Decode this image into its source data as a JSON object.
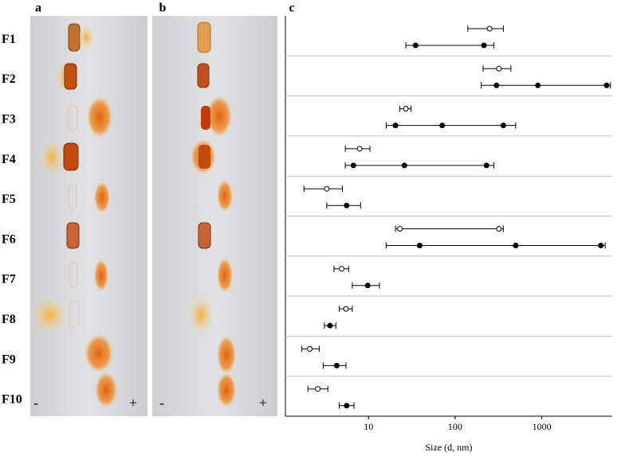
{
  "gels": [
    {
      "label": "a",
      "minus": "-",
      "plus": "+"
    },
    {
      "label": "b",
      "minus": "-",
      "plus": "+"
    }
  ],
  "chart_data": {
    "type": "scatter",
    "panel_label": "c",
    "x_label": "Size (d, nm)",
    "xscale": "log",
    "xlim": [
      1.1,
      6500
    ],
    "xticks": [
      10,
      100,
      1000
    ],
    "categories": [
      "F1",
      "F2",
      "F3",
      "F4",
      "F5",
      "F6",
      "F7",
      "F8",
      "F9",
      "F10"
    ],
    "series": [
      {
        "marker": "open",
        "color": "#000000",
        "rows": [
          {
            "values": [
              250
            ],
            "range": [
              140,
              360
            ]
          },
          {
            "values": [
              320
            ],
            "range": [
              210,
              440
            ]
          },
          {
            "values": [
              27
            ],
            "range": [
              23,
              31
            ]
          },
          {
            "values": [
              7.9
            ],
            "range": [
              5.4,
              10.4
            ]
          },
          {
            "values": [
              3.3
            ],
            "range": [
              1.8,
              5
            ]
          },
          {
            "values": [
              23,
              320
            ],
            "range": [
              20.5,
              360
            ]
          },
          {
            "values": [
              4.9
            ],
            "range": [
              4,
              5.9
            ]
          },
          {
            "values": [
              5.5
            ],
            "range": [
              4.6,
              6.5
            ]
          },
          {
            "values": [
              2.1
            ],
            "range": [
              1.7,
              2.7
            ]
          },
          {
            "values": [
              2.6
            ],
            "range": [
              2,
              3.4
            ]
          }
        ]
      },
      {
        "marker": "filled",
        "color": "#000000",
        "rows": [
          {
            "values": [
              35,
              215
            ],
            "range": [
              27,
              280
            ]
          },
          {
            "values": [
              300,
              900,
              5600
            ],
            "range": [
              200,
              6200
            ]
          },
          {
            "values": [
              20.5,
              71,
              360
            ],
            "range": [
              16,
              500
            ]
          },
          {
            "values": [
              6.7,
              26,
              230
            ],
            "range": [
              5.4,
              280
            ]
          },
          {
            "values": [
              5.6
            ],
            "range": [
              3.3,
              8.1
            ]
          },
          {
            "values": [
              39,
              500,
              4800
            ],
            "range": [
              16,
              5400
            ]
          },
          {
            "values": [
              9.8
            ],
            "range": [
              6.5,
              13.4
            ]
          },
          {
            "values": [
              3.6
            ],
            "range": [
              3.1,
              4.2
            ]
          },
          {
            "values": [
              4.3
            ],
            "range": [
              3,
              5.5
            ]
          },
          {
            "values": [
              5.6
            ],
            "range": [
              4.6,
              6.8
            ]
          }
        ]
      }
    ]
  }
}
